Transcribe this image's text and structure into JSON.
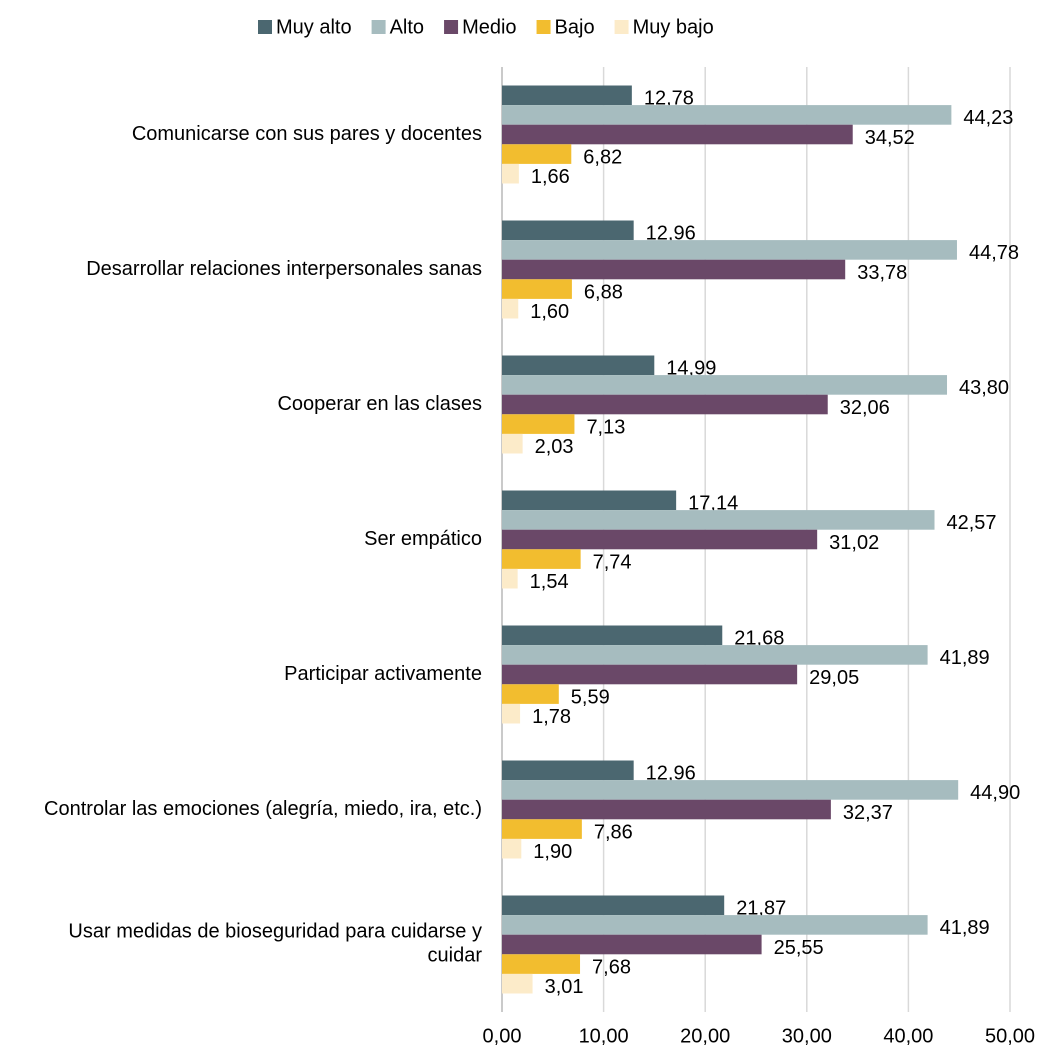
{
  "chart_data": {
    "type": "barh",
    "categories": [
      "Comunicarse con sus pares y docentes",
      "Desarrollar relaciones interpersonales sanas",
      "Cooperar en las clases",
      "Ser empático",
      "Participar activamente",
      "Controlar las emociones (alegría, miedo, ira, etc.)",
      "Usar medidas de bioseguridad para cuidarse y cuidar"
    ],
    "series": [
      {
        "name": "Muy alto",
        "color": "#4b6770",
        "values": [
          12.78,
          12.96,
          14.99,
          17.14,
          21.68,
          12.96,
          21.87
        ],
        "value_labels": [
          "12,78",
          "12,96",
          "14,99",
          "17,14",
          "21,68",
          "12,96",
          "21,87"
        ]
      },
      {
        "name": "Alto",
        "color": "#a6bcbf",
        "values": [
          44.23,
          44.78,
          43.8,
          42.57,
          41.89,
          44.9,
          41.89
        ],
        "value_labels": [
          "44,23",
          "44,78",
          "43,80",
          "42,57",
          "41,89",
          "44,90",
          "41,89"
        ]
      },
      {
        "name": "Medio",
        "color": "#6a4868",
        "values": [
          34.52,
          33.78,
          32.06,
          31.02,
          29.05,
          32.37,
          25.55
        ],
        "value_labels": [
          "34,52",
          "33,78",
          "32,06",
          "31,02",
          "29,05",
          "32,37",
          "25,55"
        ]
      },
      {
        "name": "Bajo",
        "color": "#f2bd2f",
        "values": [
          6.82,
          6.88,
          7.13,
          7.74,
          5.59,
          7.86,
          7.68
        ],
        "value_labels": [
          "6,82",
          "6,88",
          "7,13",
          "7,74",
          "5,59",
          "7,86",
          "7,68"
        ]
      },
      {
        "name": "Muy bajo",
        "color": "#fcebc9",
        "values": [
          1.66,
          1.6,
          2.03,
          1.54,
          1.78,
          1.9,
          3.01
        ],
        "value_labels": [
          "1,66",
          "1,60",
          "2,03",
          "1,54",
          "1,78",
          "1,90",
          "3,01"
        ]
      }
    ],
    "xlim": [
      0,
      50
    ],
    "xticks": [
      {
        "value": 0,
        "label": "0,00"
      },
      {
        "value": 10,
        "label": "10,00"
      },
      {
        "value": 20,
        "label": "20,00"
      },
      {
        "value": 30,
        "label": "30,00"
      },
      {
        "value": 40,
        "label": "40,00"
      },
      {
        "value": 50,
        "label": "50,00"
      }
    ],
    "grid": true,
    "legend": "top"
  }
}
